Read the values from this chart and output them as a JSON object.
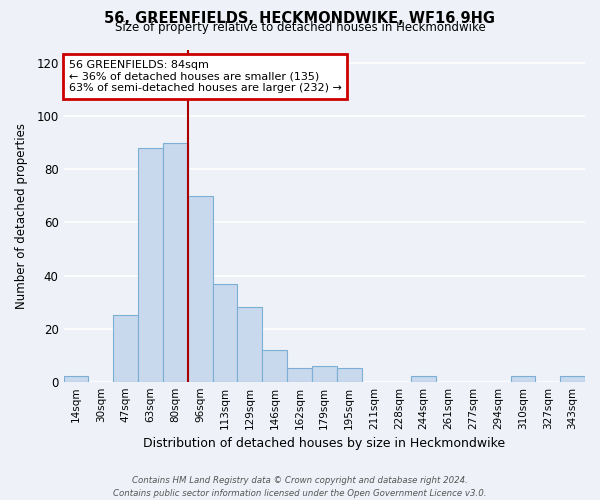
{
  "title": "56, GREENFIELDS, HECKMONDWIKE, WF16 9HG",
  "subtitle": "Size of property relative to detached houses in Heckmondwike",
  "xlabel": "Distribution of detached houses by size in Heckmondwike",
  "ylabel": "Number of detached properties",
  "bin_labels": [
    "14sqm",
    "30sqm",
    "47sqm",
    "63sqm",
    "80sqm",
    "96sqm",
    "113sqm",
    "129sqm",
    "146sqm",
    "162sqm",
    "179sqm",
    "195sqm",
    "211sqm",
    "228sqm",
    "244sqm",
    "261sqm",
    "277sqm",
    "294sqm",
    "310sqm",
    "327sqm",
    "343sqm"
  ],
  "bar_values": [
    2,
    0,
    25,
    88,
    90,
    70,
    37,
    28,
    12,
    5,
    6,
    5,
    0,
    0,
    2,
    0,
    0,
    0,
    2,
    0,
    2
  ],
  "bar_color": "#c8d8ed",
  "bar_edge_color": "#7bafd4",
  "ylim": [
    0,
    125
  ],
  "yticks": [
    0,
    20,
    40,
    60,
    80,
    100,
    120
  ],
  "marker_bin_index": 4,
  "annotation_title": "56 GREENFIELDS: 84sqm",
  "annotation_line1": "← 36% of detached houses are smaller (135)",
  "annotation_line2": "63% of semi-detached houses are larger (232) →",
  "annotation_box_color": "#ffffff",
  "annotation_border_color": "#cc0000",
  "marker_line_color": "#aa0000",
  "footer": "Contains HM Land Registry data © Crown copyright and database right 2024.\nContains public sector information licensed under the Open Government Licence v3.0.",
  "background_color": "#eef2f8",
  "plot_bg_color": "#eef2f8",
  "grid_color": "#ffffff"
}
